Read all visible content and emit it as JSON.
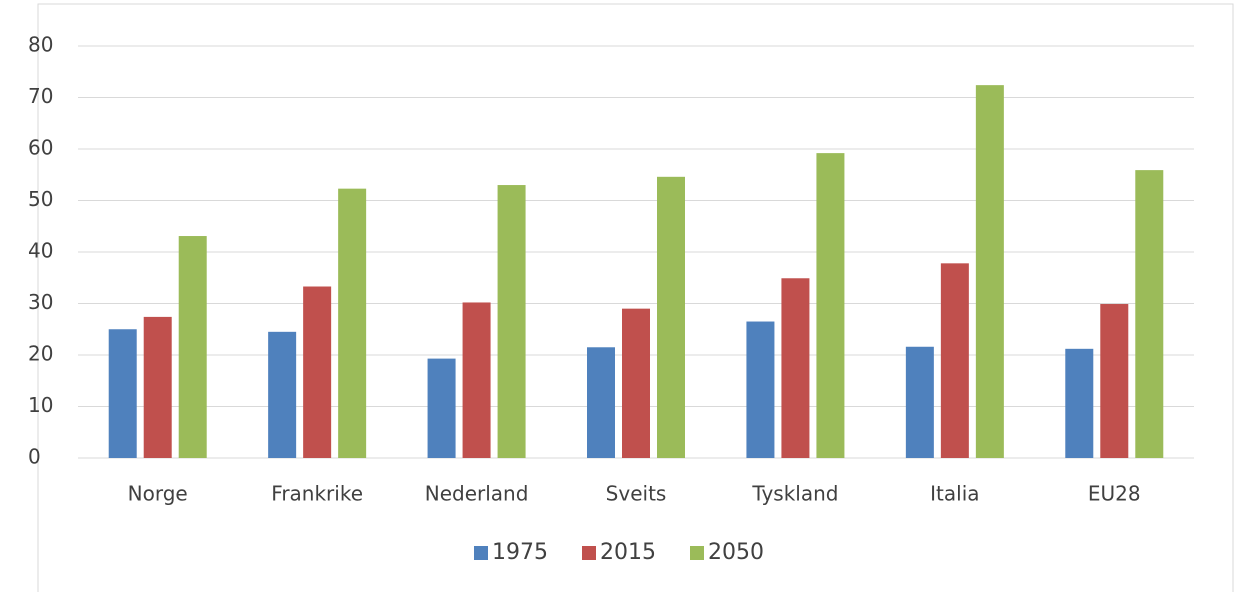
{
  "chart_data": {
    "type": "bar",
    "categories": [
      "Norge",
      "Frankrike",
      "Nederland",
      "Sveits",
      "Tyskland",
      "Italia",
      "EU28"
    ],
    "series": [
      {
        "name": "1975",
        "color": "#4f81bd",
        "values": [
          25,
          24.5,
          19.3,
          21.5,
          26.5,
          21.6,
          21.2
        ]
      },
      {
        "name": "2015",
        "color": "#c0504d",
        "values": [
          27.4,
          33.3,
          30.2,
          29,
          34.9,
          37.8,
          29.9
        ]
      },
      {
        "name": "2050",
        "color": "#9bbb59",
        "values": [
          43.1,
          52.3,
          53,
          54.6,
          59.2,
          72.4,
          55.9
        ]
      }
    ],
    "ylim": [
      0,
      80
    ],
    "yticks": [
      0,
      10,
      20,
      30,
      40,
      50,
      60,
      70,
      80
    ],
    "grid": true,
    "legend": "bottom"
  }
}
